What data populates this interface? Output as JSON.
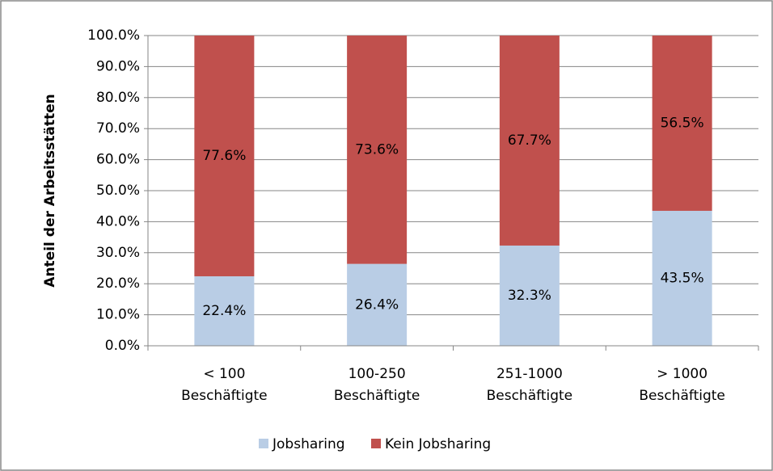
{
  "chart_data": {
    "type": "stacked_bar",
    "y_label": "Anteil der Arbeitsstätten",
    "categories": [
      "< 100 Beschäftigte",
      "100-250 Beschäftigte",
      "251-1000 Beschäftigte",
      "> 1000 Beschäftigte"
    ],
    "series": [
      {
        "name": "Jobsharing",
        "color": "#b9cde5",
        "values": [
          22.4,
          26.4,
          32.3,
          43.5
        ],
        "value_labels": [
          "22.4%",
          "26.4%",
          "32.3%",
          "43.5%"
        ]
      },
      {
        "name": "Kein Jobsharing",
        "color": "#c0504d",
        "values": [
          77.6,
          73.6,
          67.7,
          56.5
        ],
        "value_labels": [
          "77.6%",
          "73.6%",
          "67.7%",
          "56.5%"
        ]
      }
    ],
    "ylim": [
      0,
      100
    ],
    "yticks": [
      {
        "value": 0,
        "label": "0.0%"
      },
      {
        "value": 10,
        "label": "10.0%"
      },
      {
        "value": 20,
        "label": "20.0%"
      },
      {
        "value": 30,
        "label": "30.0%"
      },
      {
        "value": 40,
        "label": "40.0%"
      },
      {
        "value": 50,
        "label": "50.0%"
      },
      {
        "value": 60,
        "label": "60.0%"
      },
      {
        "value": 70,
        "label": "70.0%"
      },
      {
        "value": 80,
        "label": "80.0%"
      },
      {
        "value": 90,
        "label": "90.0%"
      },
      {
        "value": 100,
        "label": "100.0%"
      }
    ],
    "grid": true,
    "legend": "bottom"
  }
}
